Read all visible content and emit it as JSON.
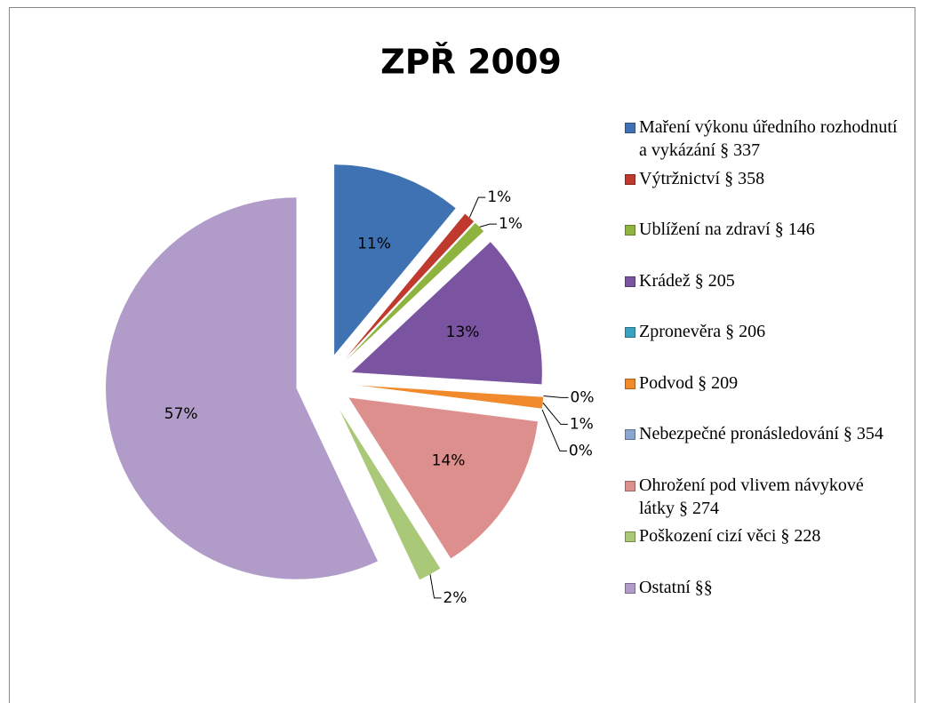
{
  "chart_data": {
    "type": "pie",
    "title": "ZPŘ 2009",
    "categories": [
      "Maření výkonu úředního rozhodnutí a vykázání § 337",
      "Výtržnictví § 358",
      "Ublížení na zdraví § 146",
      "Krádež § 205",
      "Zpronevěra § 206",
      "Podvod § 209",
      "Nebezpečné pronásledování § 354",
      "Ohrožení pod vlivem návykové látky § 274",
      "Poškození cizí věci § 228",
      "Ostatní §§"
    ],
    "values": [
      11,
      1,
      1,
      13,
      0,
      1,
      0,
      14,
      2,
      57
    ],
    "value_labels": [
      "11%",
      "1%",
      "1%",
      "13%",
      "0%",
      "1%",
      "0%",
      "14%",
      "2%",
      "57%"
    ],
    "colors": [
      "#3f72b3",
      "#c0392f",
      "#8fb33f",
      "#7a54a0",
      "#3ba3bf",
      "#f08a2c",
      "#8aa6cf",
      "#dc8f8c",
      "#a9c878",
      "#b09bc9"
    ],
    "legend": "right"
  }
}
